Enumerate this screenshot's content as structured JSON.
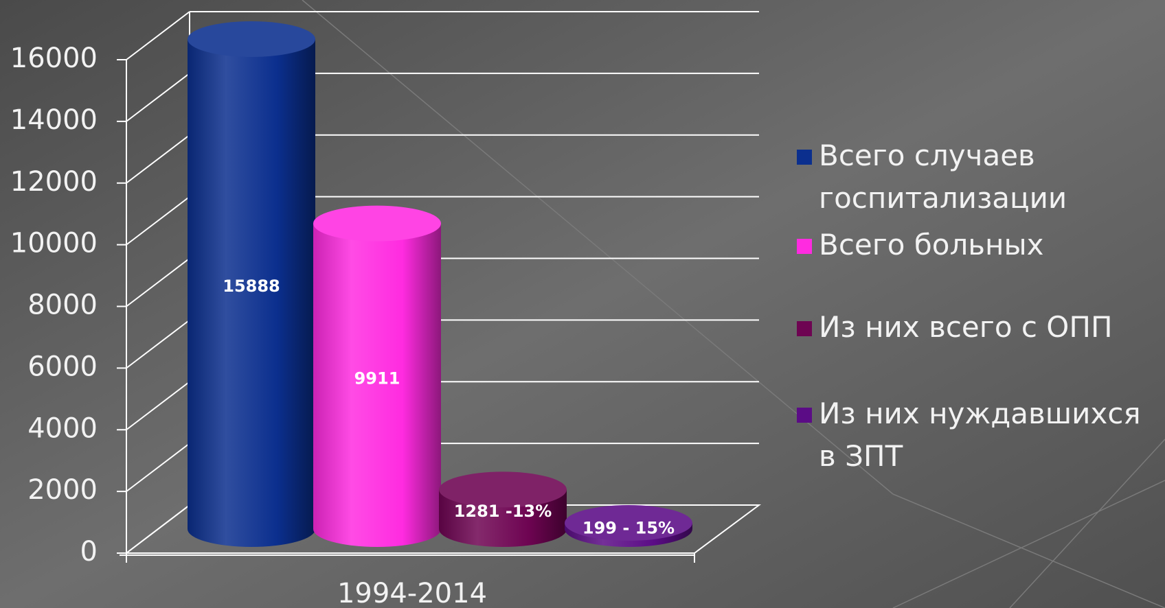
{
  "chart_data": {
    "type": "bar3d",
    "categories": [
      "1994-2014"
    ],
    "series": [
      {
        "name": "Всего случаев госпитализации",
        "color": "#0b2f8e",
        "values": [
          15888
        ]
      },
      {
        "name": "Всего больных",
        "color": "#ff2be0",
        "values": [
          9911
        ]
      },
      {
        "name": "Из них всего с ОПП",
        "color": "#6e0452",
        "values": [
          1281
        ],
        "value_labels": [
          "1281 -13%"
        ]
      },
      {
        "name": "Из них нуждавшихся в ЗПТ",
        "color": "#5b0c86",
        "values": [
          199
        ],
        "value_labels": [
          "199 - 15%"
        ]
      }
    ],
    "ylim": [
      0,
      16000
    ],
    "yticks": [
      0,
      2000,
      4000,
      6000,
      8000,
      10000,
      12000,
      14000,
      16000
    ],
    "grid": true
  }
}
